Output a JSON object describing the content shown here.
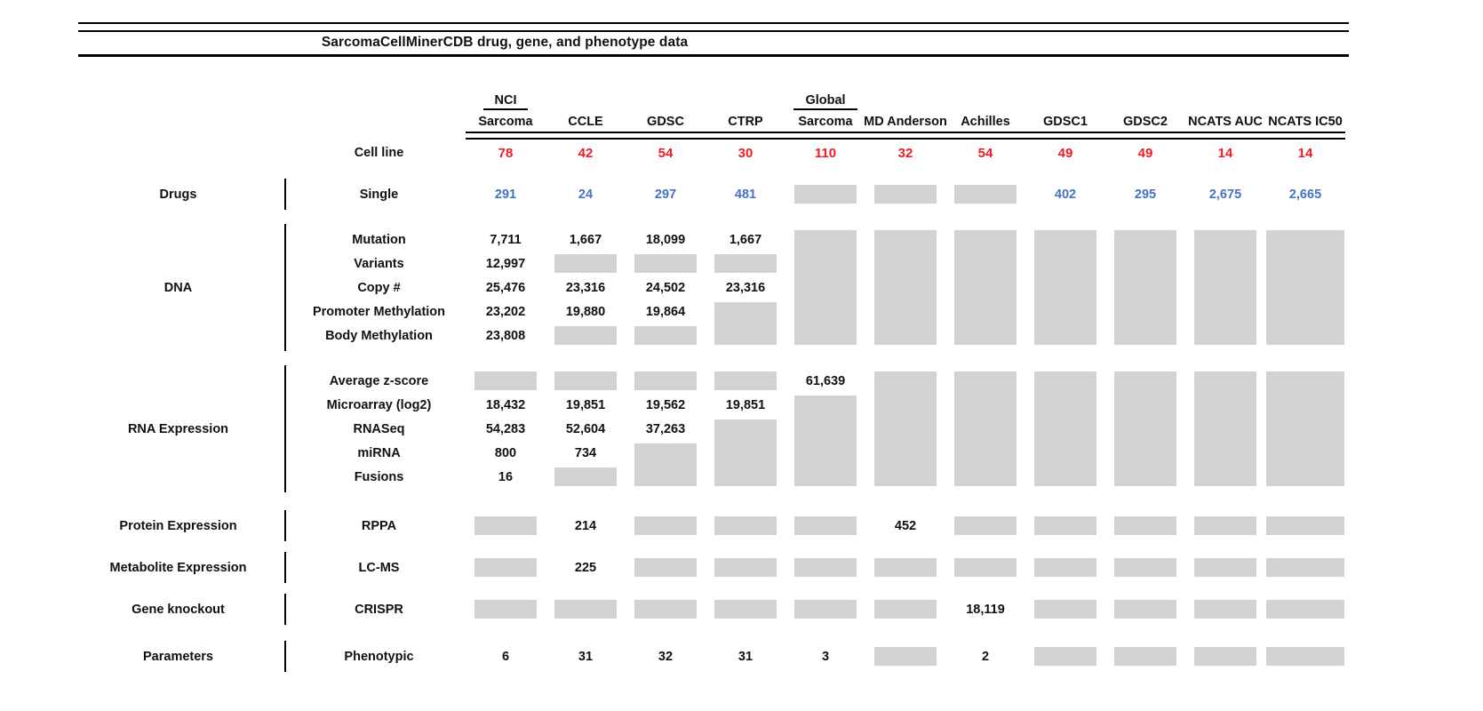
{
  "title": "SarcomaCellMinerCDB drug, gene, and phenotype data",
  "colors": {
    "cell_line_count_red": "#ed1c24",
    "drug_count_blue": "#4472c4",
    "no_data_gray": "#d2d2d2",
    "text_black": "#111111"
  },
  "chart_data": {
    "type": "table",
    "title": "SarcomaCellMinerCDB drug, gene, and phenotype data",
    "cell_encoding": "numeric string = count shown; #N = gray no-data box spanning N rows; empty = covered by a spanning box above",
    "columns": [
      {
        "top": "NCI",
        "name": "Sarcoma"
      },
      {
        "top": "",
        "name": "CCLE"
      },
      {
        "top": "",
        "name": "GDSC"
      },
      {
        "top": "",
        "name": "CTRP"
      },
      {
        "top": "Global",
        "name": "Sarcoma"
      },
      {
        "top": "",
        "name": "MD Anderson"
      },
      {
        "top": "",
        "name": "Achilles"
      },
      {
        "top": "",
        "name": "GDSC1"
      },
      {
        "top": "",
        "name": "GDSC2"
      },
      {
        "top": "",
        "name": "NCATS AUC"
      },
      {
        "top": "",
        "name": "NCATS IC50"
      }
    ],
    "cell_line": {
      "label": "Cell line",
      "values": [
        "78",
        "42",
        "54",
        "30",
        "110",
        "32",
        "54",
        "49",
        "49",
        "14",
        "14"
      ]
    },
    "sections": [
      {
        "category": "Drugs",
        "rows": [
          {
            "label": "Single",
            "color": "blue",
            "cells": [
              "291",
              "24",
              "297",
              "481",
              "#1",
              "#1",
              "#1",
              "402",
              "295",
              "2,675",
              "2,665"
            ]
          }
        ]
      },
      {
        "category": "DNA",
        "rows": [
          {
            "label": "Mutation",
            "cells": [
              "7,711",
              "1,667",
              "18,099",
              "1,667",
              "#5",
              "#5",
              "#5",
              "#5",
              "#5",
              "#5",
              "#5"
            ]
          },
          {
            "label": "Variants",
            "cells": [
              "12,997",
              "#1",
              "#1",
              "#1",
              "",
              "",
              "",
              "",
              "",
              "",
              ""
            ]
          },
          {
            "label": "Copy #",
            "cells": [
              "25,476",
              "23,316",
              "24,502",
              "23,316",
              "",
              "",
              "",
              "",
              "",
              "",
              ""
            ]
          },
          {
            "label": "Promoter Methylation",
            "cells": [
              "23,202",
              "19,880",
              "19,864",
              "#2",
              "",
              "",
              "",
              "",
              "",
              "",
              ""
            ]
          },
          {
            "label": "Body Methylation",
            "cells": [
              "23,808",
              "#1",
              "#1",
              "",
              "",
              "",
              "",
              "",
              "",
              "",
              ""
            ]
          }
        ]
      },
      {
        "category": "RNA Expression",
        "rows": [
          {
            "label": "Average z-score",
            "cells": [
              "#1",
              "#1",
              "#1",
              "#1",
              "61,639",
              "#5",
              "#5",
              "#5",
              "#5",
              "#5",
              "#5"
            ]
          },
          {
            "label": "Microarray (log2)",
            "cells": [
              "18,432",
              "19,851",
              "19,562",
              "19,851",
              "#4",
              "",
              "",
              "",
              "",
              "",
              ""
            ]
          },
          {
            "label": "RNASeq",
            "cells": [
              "54,283",
              "52,604",
              "37,263",
              "#3",
              "",
              "",
              "",
              "",
              "",
              "",
              ""
            ]
          },
          {
            "label": "miRNA",
            "cells": [
              "800",
              "734",
              "#2",
              "",
              "",
              "",
              "",
              "",
              "",
              "",
              ""
            ]
          },
          {
            "label": "Fusions",
            "cells": [
              "16",
              "#1",
              "",
              "",
              "",
              "",
              "",
              "",
              "",
              "",
              ""
            ]
          }
        ]
      },
      {
        "category": "Protein Expression",
        "rows": [
          {
            "label": "RPPA",
            "cells": [
              "#1",
              "214",
              "#1",
              "#1",
              "#1",
              "452",
              "#1",
              "#1",
              "#1",
              "#1",
              "#1"
            ]
          }
        ]
      },
      {
        "category": "Metabolite Expression",
        "rows": [
          {
            "label": "LC-MS",
            "cells": [
              "#1",
              "225",
              "#1",
              "#1",
              "#1",
              "#1",
              "#1",
              "#1",
              "#1",
              "#1",
              "#1"
            ]
          }
        ]
      },
      {
        "category": "Gene knockout",
        "rows": [
          {
            "label": "CRISPR",
            "cells": [
              "#1",
              "#1",
              "#1",
              "#1",
              "#1",
              "#1",
              "18,119",
              "#1",
              "#1",
              "#1",
              "#1"
            ]
          }
        ]
      },
      {
        "category": "Parameters",
        "rows": [
          {
            "label": "Phenotypic",
            "cells": [
              "6",
              "31",
              "32",
              "31",
              "3",
              "#1",
              "2",
              "#1",
              "#1",
              "#1",
              "#1"
            ]
          }
        ]
      }
    ]
  }
}
